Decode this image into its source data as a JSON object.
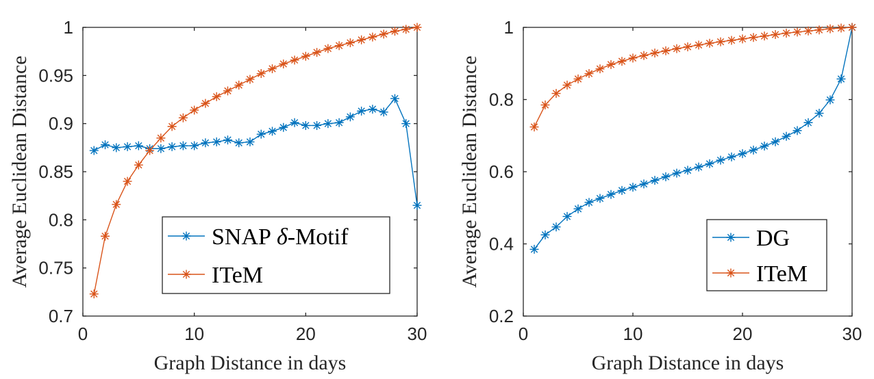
{
  "colors": {
    "blue": "#0072BD",
    "orange": "#D95319",
    "axis": "#262626"
  },
  "chart_data": [
    {
      "type": "line",
      "title": "",
      "xlabel": "Graph Distance in days",
      "ylabel": "Average Euclidean Distance",
      "xlim": [
        0,
        30
      ],
      "ylim": [
        0.7,
        1.0
      ],
      "xticks": [
        0,
        10,
        20,
        30
      ],
      "xtick_labels": [
        "0",
        "10",
        "20",
        "30"
      ],
      "yticks": [
        0.7,
        0.75,
        0.8,
        0.85,
        0.9,
        0.95,
        1.0
      ],
      "ytick_labels": [
        "0.7",
        "0.75",
        "0.8",
        "0.85",
        "0.9",
        "0.95",
        "1"
      ],
      "legend_position": "bottom-right",
      "x": [
        1,
        2,
        3,
        4,
        5,
        6,
        7,
        8,
        9,
        10,
        11,
        12,
        13,
        14,
        15,
        16,
        17,
        18,
        19,
        20,
        21,
        22,
        23,
        24,
        25,
        26,
        27,
        28,
        29,
        30
      ],
      "series": [
        {
          "name": "SNAP δ-Motif",
          "legend_text": "SNAP",
          "legend_math": "δ",
          "legend_suffix": "-Motif",
          "color": "#0072BD",
          "values": [
            0.872,
            0.878,
            0.875,
            0.876,
            0.877,
            0.874,
            0.874,
            0.876,
            0.877,
            0.877,
            0.88,
            0.881,
            0.883,
            0.88,
            0.881,
            0.889,
            0.892,
            0.896,
            0.901,
            0.898,
            0.898,
            0.9,
            0.901,
            0.907,
            0.913,
            0.915,
            0.912,
            0.926,
            0.9,
            0.815
          ]
        },
        {
          "name": "ITeM",
          "legend_text": "ITeM",
          "legend_math": "",
          "legend_suffix": "",
          "color": "#D95319",
          "values": [
            0.723,
            0.783,
            0.816,
            0.84,
            0.857,
            0.872,
            0.885,
            0.897,
            0.906,
            0.914,
            0.921,
            0.928,
            0.934,
            0.94,
            0.946,
            0.952,
            0.957,
            0.962,
            0.966,
            0.97,
            0.974,
            0.978,
            0.981,
            0.984,
            0.987,
            0.99,
            0.993,
            0.996,
            0.998,
            1.0
          ]
        }
      ]
    },
    {
      "type": "line",
      "title": "",
      "xlabel": "Graph Distance in days",
      "ylabel": "Average Euclidean Distance",
      "xlim": [
        0,
        30
      ],
      "ylim": [
        0.2,
        1.0
      ],
      "xticks": [
        0,
        10,
        20,
        30
      ],
      "xtick_labels": [
        "0",
        "10",
        "20",
        "30"
      ],
      "yticks": [
        0.2,
        0.4,
        0.6,
        0.8,
        1.0
      ],
      "ytick_labels": [
        "0.2",
        "0.4",
        "0.6",
        "0.8",
        "1"
      ],
      "legend_position": "bottom-right",
      "x": [
        1,
        2,
        3,
        4,
        5,
        6,
        7,
        8,
        9,
        10,
        11,
        12,
        13,
        14,
        15,
        16,
        17,
        18,
        19,
        20,
        21,
        22,
        23,
        24,
        25,
        26,
        27,
        28,
        29,
        30
      ],
      "series": [
        {
          "name": "DG",
          "legend_text": "DG",
          "legend_math": "",
          "legend_suffix": "",
          "color": "#0072BD",
          "values": [
            0.385,
            0.425,
            0.447,
            0.476,
            0.497,
            0.515,
            0.526,
            0.537,
            0.548,
            0.557,
            0.566,
            0.576,
            0.586,
            0.596,
            0.604,
            0.613,
            0.622,
            0.632,
            0.641,
            0.65,
            0.66,
            0.671,
            0.683,
            0.698,
            0.714,
            0.736,
            0.762,
            0.799,
            0.857,
            1.0
          ]
        },
        {
          "name": "ITeM",
          "legend_text": "ITeM",
          "legend_math": "",
          "legend_suffix": "",
          "color": "#D95319",
          "values": [
            0.724,
            0.785,
            0.817,
            0.84,
            0.857,
            0.872,
            0.885,
            0.897,
            0.906,
            0.915,
            0.922,
            0.929,
            0.935,
            0.941,
            0.946,
            0.951,
            0.956,
            0.96,
            0.964,
            0.968,
            0.972,
            0.976,
            0.98,
            0.984,
            0.987,
            0.99,
            0.993,
            0.996,
            0.998,
            1.0
          ]
        }
      ]
    }
  ]
}
